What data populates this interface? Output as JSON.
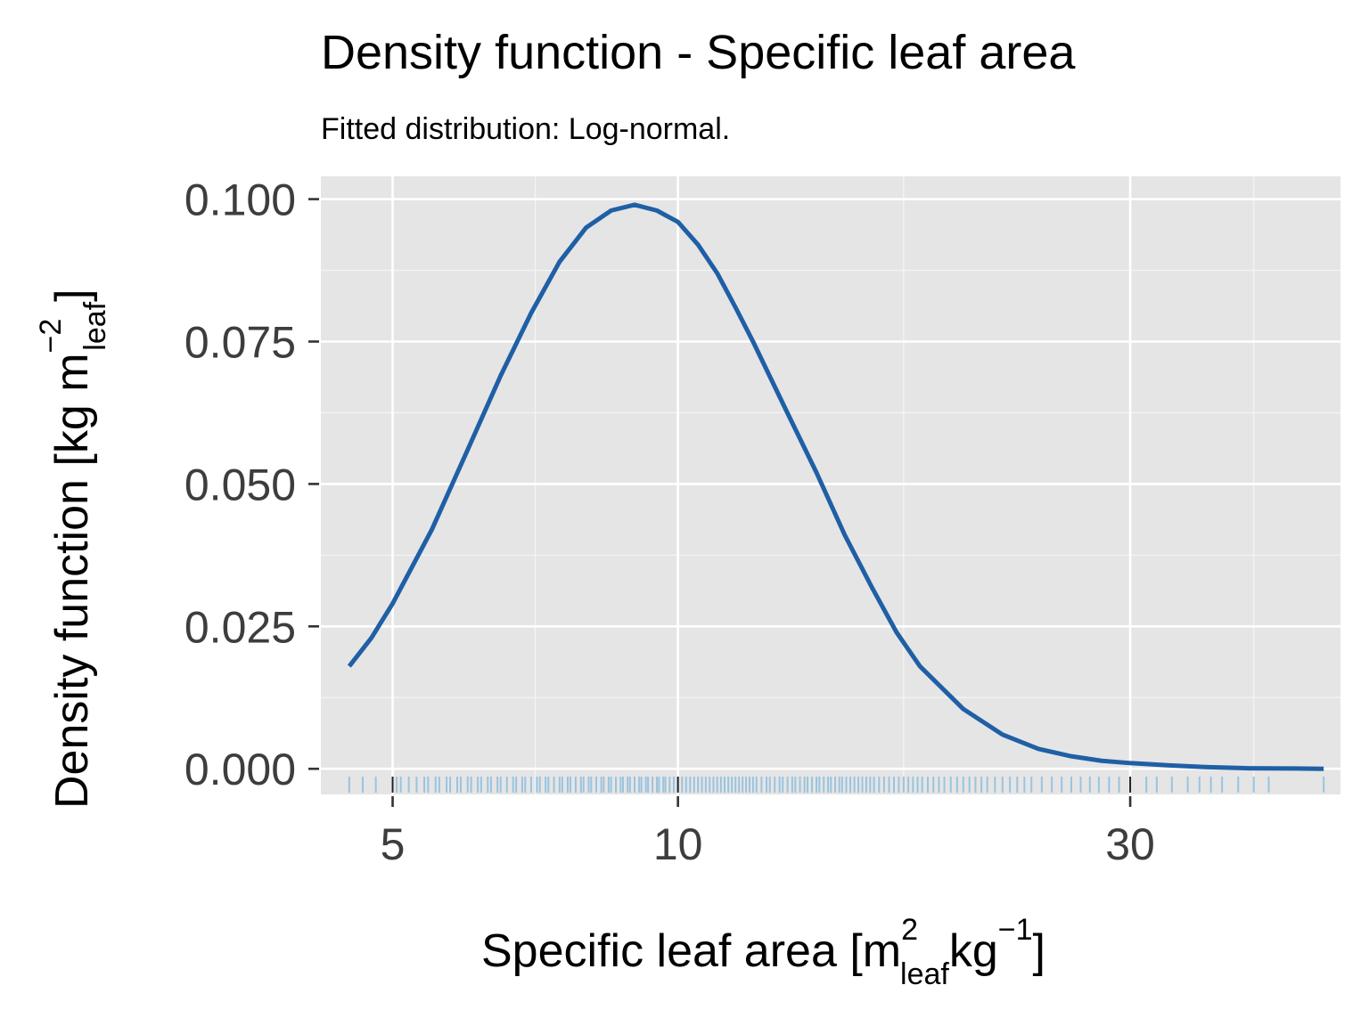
{
  "chart_data": {
    "type": "line",
    "title": "Density function - Specific leaf area",
    "subtitle": "Fitted distribution: Log-normal.",
    "xlabel": {
      "prefix": "Specific leaf area [m",
      "sup1": "2",
      "sub1": "leaf",
      "mid": "kg",
      "sup2": "−1",
      "suffix": "]"
    },
    "ylabel": {
      "prefix": "Density function [kg  m",
      "sup": "−2",
      "sub": "leaf",
      "suffix": "]"
    },
    "x_scale": "log",
    "xlim": [
      4.2,
      50
    ],
    "ylim": [
      -0.0045,
      0.104
    ],
    "x_ticks": [
      5,
      10,
      30
    ],
    "x_tick_labels": [
      "5",
      "10",
      "30"
    ],
    "x_minor_gridlines": [
      7.07,
      17.3,
      40.5
    ],
    "y_ticks": [
      0,
      0.025,
      0.05,
      0.075,
      0.1
    ],
    "y_tick_labels": [
      "0.000",
      "0.025",
      "0.050",
      "0.075",
      "0.100"
    ],
    "grid": true,
    "background": "#e5e5e5",
    "line_color": "#1f5fa5",
    "rug_color": "#9ac4df",
    "series": [
      {
        "x": [
          4.5,
          4.75,
          5.0,
          5.5,
          6.0,
          6.5,
          7.0,
          7.5,
          8.0,
          8.5,
          9.0,
          9.5,
          10.0,
          10.5,
          11.0,
          11.5,
          12.0,
          13.0,
          14.0,
          15.0,
          16.0,
          17.0,
          18.0,
          20.0,
          22.0,
          24.0,
          26.0,
          28.0,
          30.0,
          33.0,
          36.0,
          40.0,
          45.0,
          48.0
        ],
        "y": [
          0.018,
          0.023,
          0.029,
          0.042,
          0.056,
          0.069,
          0.08,
          0.089,
          0.095,
          0.098,
          0.099,
          0.098,
          0.096,
          0.092,
          0.087,
          0.081,
          0.075,
          0.063,
          0.052,
          0.041,
          0.032,
          0.024,
          0.018,
          0.0105,
          0.006,
          0.0035,
          0.0022,
          0.0014,
          0.001,
          0.0006,
          0.0003,
          0.0001,
          5e-05,
          0.0
        ]
      }
    ],
    "rug": [
      4.5,
      4.65,
      4.8,
      5.05,
      5.1,
      5.2,
      5.3,
      5.4,
      5.45,
      5.55,
      5.6,
      5.7,
      5.75,
      5.85,
      5.9,
      6.0,
      6.05,
      6.15,
      6.2,
      6.3,
      6.35,
      6.45,
      6.5,
      6.6,
      6.7,
      6.75,
      6.85,
      6.9,
      7.0,
      7.1,
      7.15,
      7.25,
      7.3,
      7.4,
      7.5,
      7.55,
      7.65,
      7.7,
      7.8,
      7.9,
      7.95,
      8.05,
      8.1,
      8.2,
      8.3,
      8.35,
      8.45,
      8.5,
      8.6,
      8.7,
      8.75,
      8.85,
      8.9,
      9.0,
      9.1,
      9.15,
      9.25,
      9.3,
      9.4,
      9.5,
      9.55,
      9.65,
      9.7,
      9.8,
      9.9,
      10.0,
      10.1,
      10.2,
      10.3,
      10.4,
      10.5,
      10.6,
      10.7,
      10.8,
      10.9,
      11.0,
      11.1,
      11.2,
      11.3,
      11.4,
      11.5,
      11.6,
      11.7,
      11.8,
      11.9,
      12.0,
      12.1,
      12.25,
      12.4,
      12.5,
      12.65,
      12.8,
      12.9,
      13.05,
      13.2,
      13.3,
      13.45,
      13.6,
      13.7,
      13.85,
      14.0,
      14.1,
      14.25,
      14.4,
      14.5,
      14.65,
      14.8,
      14.9,
      15.05,
      15.2,
      15.35,
      15.5,
      15.65,
      15.8,
      15.95,
      16.1,
      16.3,
      16.5,
      16.7,
      16.9,
      17.1,
      17.3,
      17.5,
      17.7,
      17.9,
      18.1,
      18.35,
      18.6,
      18.85,
      19.1,
      19.4,
      19.7,
      20.0,
      20.3,
      20.6,
      20.9,
      21.2,
      21.6,
      22.0,
      22.4,
      22.8,
      23.2,
      23.6,
      24.2,
      24.8,
      25.4,
      26.0,
      26.6,
      27.2,
      27.8,
      28.5,
      29.2,
      30.0,
      31.2,
      32.0,
      33.2,
      34.5,
      35.5,
      36.5,
      37.5,
      39.0,
      40.5,
      42.0,
      48.0
    ]
  }
}
